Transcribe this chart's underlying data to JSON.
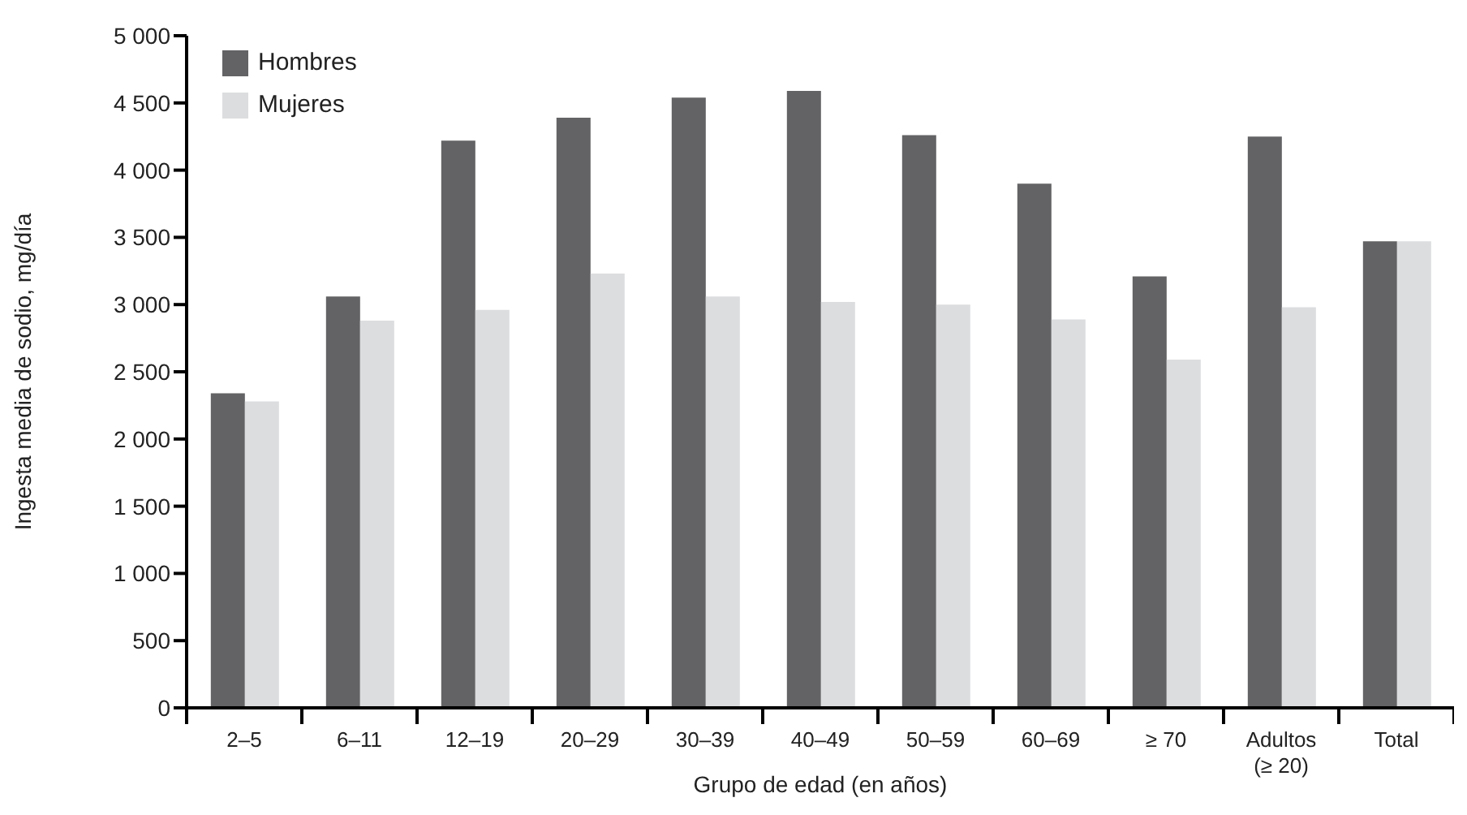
{
  "chart_data": {
    "type": "bar",
    "xlabel": "Grupo de edad (en años)",
    "ylabel": "Ingesta media de sodio, mg/día",
    "categories": [
      "2–5",
      "6–11",
      "12–19",
      "20–29",
      "30–39",
      "40–49",
      "50–59",
      "60–69",
      "≥ 70",
      "Adultos\n(≥ 20)",
      "Total"
    ],
    "series": [
      {
        "name": "Hombres",
        "color": "#636365",
        "values": [
          2340,
          3060,
          4220,
          4390,
          4540,
          4590,
          4260,
          3900,
          3210,
          4250,
          3470
        ]
      },
      {
        "name": "Mujeres",
        "color": "#dcdddf",
        "values": [
          2280,
          2880,
          2960,
          3230,
          3060,
          3020,
          3000,
          2890,
          2590,
          2980,
          3470
        ]
      }
    ],
    "ylim": [
      0,
      5000
    ],
    "yticks": [
      0,
      500,
      {
        "value": 1000,
        "label": "1 000"
      },
      {
        "value": 1500,
        "label": "1 500"
      },
      {
        "value": 2000,
        "label": "2 000"
      },
      {
        "value": 2500,
        "label": "2 500"
      },
      {
        "value": 3000,
        "label": "3 000"
      },
      {
        "value": 3500,
        "label": "3 500"
      },
      {
        "value": 4000,
        "label": "4 000"
      },
      {
        "value": 4500,
        "label": "4 500"
      },
      {
        "value": 5000,
        "label": "5 000"
      }
    ],
    "grid": false,
    "legend": "top left"
  }
}
